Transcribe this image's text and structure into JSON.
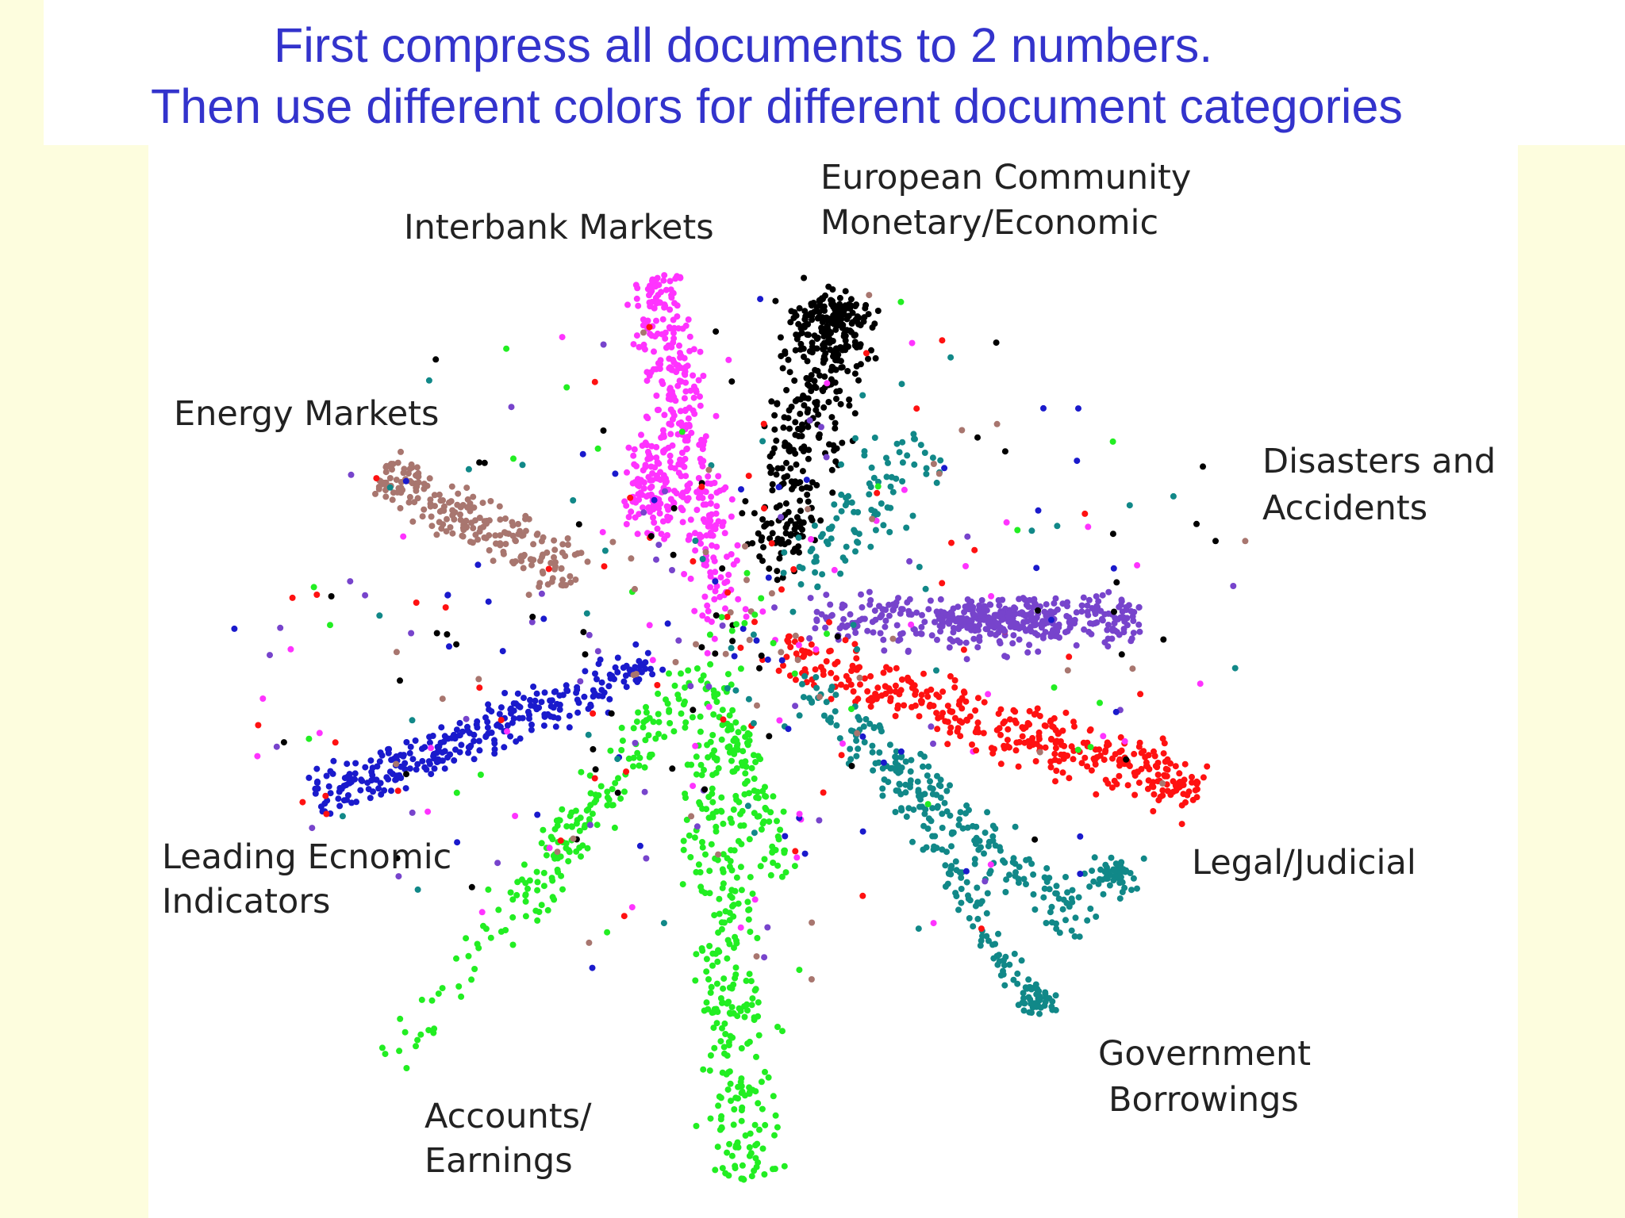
{
  "slide": {
    "title": [
      "First compress all documents to 2 numbers.",
      "Then use different colors for different document categories"
    ],
    "plot_labels": [
      [
        "European Community",
        "Monetary/Economic"
      ],
      [
        "Interbank Markets"
      ],
      [
        "Energy Markets"
      ],
      [
        "Disasters and",
        "Accidents"
      ],
      [
        "Leading Ecnomic",
        "Indicators"
      ],
      [
        "Legal/Judicial"
      ],
      [
        "Government",
        "Borrowings"
      ],
      [
        "Accounts/",
        "Earnings"
      ]
    ]
  }
}
